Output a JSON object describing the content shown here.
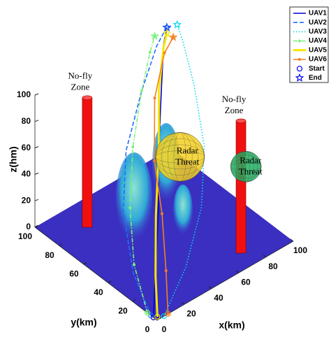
{
  "chart_data": {
    "type": "line3d",
    "xlabel": "x(km)",
    "ylabel": "y(km)",
    "zlabel": "z(hm)",
    "xlim": [
      0,
      100
    ],
    "ylim": [
      0,
      100
    ],
    "zlim": [
      0,
      100
    ],
    "xticks": [
      0,
      20,
      40,
      60,
      80,
      100
    ],
    "yticks": [
      0,
      20,
      40,
      60,
      80,
      100
    ],
    "zticks": [
      0,
      20,
      40,
      60,
      80,
      100
    ],
    "series": [
      {
        "name": "UAV1",
        "color": "#0000cc",
        "dash": "solid",
        "x": [
          0,
          15,
          35,
          55,
          75,
          90,
          97
        ],
        "y": [
          3,
          18,
          38,
          60,
          80,
          95,
          100
        ],
        "z": [
          0,
          15,
          35,
          55,
          75,
          88,
          93
        ]
      },
      {
        "name": "UAV2",
        "color": "#1f6fff",
        "dash": "dashed",
        "x": [
          0,
          5,
          20,
          40,
          65,
          85,
          95
        ],
        "y": [
          5,
          25,
          50,
          70,
          85,
          95,
          98
        ],
        "z": [
          0,
          15,
          35,
          55,
          75,
          90,
          96
        ]
      },
      {
        "name": "UAV3",
        "color": "#00d8f0",
        "dash": "dotted",
        "x": [
          5,
          30,
          55,
          75,
          90,
          98,
          100
        ],
        "y": [
          0,
          10,
          25,
          45,
          70,
          88,
          95
        ],
        "z": [
          0,
          15,
          35,
          55,
          75,
          90,
          97
        ]
      },
      {
        "name": "UAV4",
        "color": "#7cf07c",
        "dash": "dashdot",
        "marker": "dot",
        "x": [
          0,
          10,
          25,
          45,
          65,
          80,
          88
        ],
        "y": [
          8,
          30,
          50,
          70,
          85,
          95,
          100
        ],
        "z": [
          0,
          15,
          35,
          55,
          75,
          88,
          92
        ]
      },
      {
        "name": "UAV5",
        "color": "#f5e600",
        "dash": "solid",
        "width": 3,
        "x": [
          2,
          15,
          35,
          55,
          75,
          90,
          96
        ],
        "y": [
          2,
          18,
          40,
          60,
          82,
          95,
          99
        ],
        "z": [
          0,
          12,
          30,
          52,
          72,
          86,
          90
        ]
      },
      {
        "name": "UAV6",
        "color": "#f08020",
        "dash": "solid",
        "marker": "dot",
        "x": [
          8,
          20,
          35,
          50,
          70,
          88,
          98
        ],
        "y": [
          0,
          15,
          35,
          58,
          80,
          92,
          96
        ],
        "z": [
          0,
          15,
          35,
          50,
          70,
          85,
          88
        ]
      }
    ],
    "start_marker": {
      "name": "Start",
      "color": "#0000ff"
    },
    "end_marker": {
      "name": "End",
      "color": "#0000ff"
    },
    "no_fly_zones": [
      {
        "label": [
          "No-fly",
          "Zone"
        ],
        "x": 21.8,
        "y": 81.5,
        "height": 98
      },
      {
        "label": [
          "No-fly",
          "Zone"
        ],
        "x": 71.7,
        "y": 11.3,
        "height": 100
      }
    ],
    "radar_threats": [
      {
        "label": [
          "Radar",
          "Threat"
        ],
        "x": 70,
        "y": 59.3,
        "z": 40,
        "r": 18.5,
        "color": "#f5d020"
      },
      {
        "label": [
          "Radar",
          "Threat"
        ],
        "x": 99.4,
        "y": 38.1,
        "z": 30,
        "r": 11.6,
        "color": "#20b060"
      }
    ]
  }
}
